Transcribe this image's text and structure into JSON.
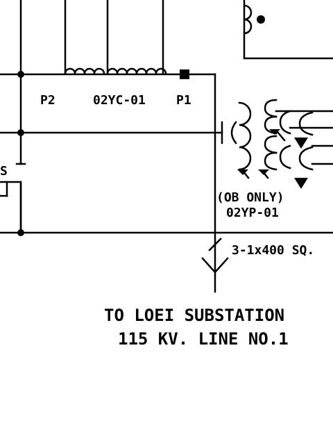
{
  "labels": {
    "ct_p2": "P2",
    "ct_tag": "02YC-01",
    "ct_p1": "P1",
    "vt_note": "(OB ONLY)",
    "vt_tag": "02YP-01",
    "cable": "3-1x400 SQ.",
    "dest_line1": "TO LOEI SUBSTATION",
    "dest_line2": "115 KV. LINE NO.1",
    "cut_label": "S"
  },
  "colors": {
    "line": "#000000",
    "background": "#ffffff"
  }
}
